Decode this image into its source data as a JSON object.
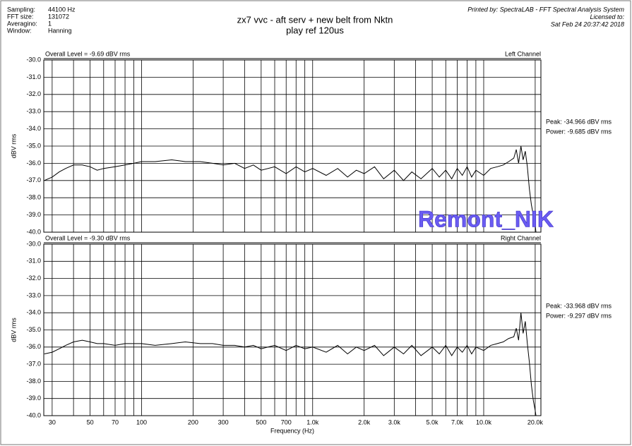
{
  "header": {
    "info_labels": [
      "Sampling:",
      "FFT size:",
      "Averagino:",
      "Window:"
    ],
    "info_values": [
      "44100 Hz",
      "131072",
      "1",
      "Hanning"
    ],
    "title_lines": [
      "zx7 vvc -   aft serv + new belt from Nktn",
      "play ref 120us"
    ],
    "printed_by": [
      "Printed by: SpectraLAB - FFT Spectral Analysis System",
      "Licensed to:",
      "Sat Feb 24 20:37:42 2018"
    ],
    "watermark": "Remont_NIK"
  },
  "chart_data": [
    {
      "type": "line",
      "overall_level": "Overall Level = -9.69 dBV rms",
      "channel": "Left Channel",
      "ylabel": "dBV rms",
      "log_x": true,
      "annotations": [
        "Peak: -34.966 dBV rms",
        "Power: -9.685 dBV rms"
      ],
      "xlim": [
        26.8,
        21600
      ],
      "ylim": [
        -40,
        -30
      ],
      "yticks": [
        {
          "value": -30,
          "label": "-30.0"
        },
        {
          "value": -31,
          "label": "-31.0"
        },
        {
          "value": -32,
          "label": "-32.0"
        },
        {
          "value": -33,
          "label": "-33.0"
        },
        {
          "value": -34,
          "label": "-34.0"
        },
        {
          "value": -35,
          "label": "-35.0"
        },
        {
          "value": -36,
          "label": "-36.0"
        },
        {
          "value": -37,
          "label": "-37.0"
        },
        {
          "value": -38,
          "label": "-38.0"
        },
        {
          "value": -39,
          "label": "-39.0"
        },
        {
          "value": -40,
          "label": "-40.0"
        }
      ],
      "x_grid": [
        30,
        40,
        50,
        60,
        70,
        80,
        90,
        100,
        200,
        300,
        400,
        500,
        600,
        700,
        800,
        900,
        1000,
        2000,
        3000,
        4000,
        5000,
        6000,
        7000,
        8000,
        9000,
        10000,
        20000
      ],
      "x": [
        27,
        30,
        33,
        36,
        40,
        45,
        50,
        55,
        60,
        70,
        80,
        90,
        100,
        120,
        150,
        180,
        220,
        260,
        300,
        350,
        400,
        450,
        500,
        600,
        700,
        800,
        900,
        1000,
        1200,
        1400,
        1600,
        1800,
        2000,
        2300,
        2600,
        3000,
        3400,
        3800,
        4300,
        5000,
        5500,
        6000,
        6500,
        7000,
        7500,
        8000,
        8500,
        9000,
        10000,
        11000,
        12000,
        13000,
        14000,
        15000,
        15500,
        16000,
        16500,
        17000,
        17500,
        18000,
        18500,
        19000,
        19500,
        20000,
        20200
      ],
      "series": [
        {
          "color": "#000000",
          "values": [
            -37.0,
            -36.8,
            -36.5,
            -36.3,
            -36.1,
            -36.1,
            -36.2,
            -36.4,
            -36.3,
            -36.2,
            -36.1,
            -36.0,
            -35.9,
            -35.9,
            -35.8,
            -35.9,
            -35.9,
            -36.0,
            -36.1,
            -36.0,
            -36.3,
            -36.1,
            -36.4,
            -36.2,
            -36.6,
            -36.2,
            -36.5,
            -36.3,
            -36.7,
            -36.3,
            -36.8,
            -36.4,
            -36.6,
            -36.2,
            -36.9,
            -36.4,
            -37.0,
            -36.5,
            -36.9,
            -36.3,
            -36.8,
            -36.4,
            -36.9,
            -36.3,
            -36.7,
            -36.2,
            -36.8,
            -36.4,
            -36.7,
            -36.3,
            -36.2,
            -36.1,
            -35.9,
            -35.7,
            -35.2,
            -36.0,
            -35.0,
            -35.8,
            -35.3,
            -36.2,
            -37.5,
            -38.4,
            -39.0,
            -39.6,
            -40.0
          ]
        }
      ]
    },
    {
      "type": "line",
      "overall_level": "Overall Level = -9.30 dBV rms",
      "channel": "Right Channel",
      "ylabel": "dBV rms",
      "xlabel": "Frequency (Hz)",
      "log_x": true,
      "annotations": [
        "Peak: -33.968 dBV rms",
        "Power: -9.297 dBV rms"
      ],
      "xlim": [
        26.8,
        21600
      ],
      "ylim": [
        -40,
        -30
      ],
      "yticks": [
        {
          "value": -30,
          "label": "-30.0"
        },
        {
          "value": -31,
          "label": "-31.0"
        },
        {
          "value": -32,
          "label": "-32.0"
        },
        {
          "value": -33,
          "label": "-33.0"
        },
        {
          "value": -34,
          "label": "-34.0"
        },
        {
          "value": -35,
          "label": "-35.0"
        },
        {
          "value": -36,
          "label": "-36.0"
        },
        {
          "value": -37,
          "label": "-37.0"
        },
        {
          "value": -38,
          "label": "-38.0"
        },
        {
          "value": -39,
          "label": "-39.0"
        },
        {
          "value": -40,
          "label": "-40.0"
        }
      ],
      "x_grid": [
        30,
        40,
        50,
        60,
        70,
        80,
        90,
        100,
        200,
        300,
        400,
        500,
        600,
        700,
        800,
        900,
        1000,
        2000,
        3000,
        4000,
        5000,
        6000,
        7000,
        8000,
        9000,
        10000,
        20000
      ],
      "xticks": [
        30,
        50,
        70,
        100,
        200,
        300,
        500,
        700,
        {
          "value": 1000,
          "label": "1.0k"
        },
        {
          "value": 2000,
          "label": "2.0k"
        },
        {
          "value": 3000,
          "label": "3.0k"
        },
        {
          "value": 5000,
          "label": "5.0k"
        },
        {
          "value": 7000,
          "label": "7.0k"
        },
        {
          "value": 10000,
          "label": "10.0k"
        },
        {
          "value": 20000,
          "label": "20.0k"
        }
      ],
      "x": [
        27,
        30,
        33,
        36,
        40,
        45,
        50,
        55,
        60,
        70,
        80,
        90,
        100,
        120,
        150,
        180,
        220,
        260,
        300,
        350,
        400,
        450,
        500,
        600,
        700,
        800,
        900,
        1000,
        1200,
        1400,
        1600,
        1800,
        2000,
        2300,
        2600,
        3000,
        3400,
        3800,
        4300,
        5000,
        5500,
        6000,
        6500,
        7000,
        7500,
        8000,
        8500,
        9000,
        10000,
        11000,
        12000,
        13000,
        14000,
        15000,
        15500,
        16000,
        16500,
        17000,
        17500,
        18000,
        18500,
        19000,
        19500,
        20000,
        20200
      ],
      "series": [
        {
          "color": "#000000",
          "values": [
            -36.4,
            -36.3,
            -36.1,
            -35.9,
            -35.7,
            -35.6,
            -35.7,
            -35.8,
            -35.8,
            -35.9,
            -35.8,
            -35.8,
            -35.8,
            -35.9,
            -35.8,
            -35.7,
            -35.8,
            -35.8,
            -35.9,
            -35.9,
            -36.0,
            -35.9,
            -36.1,
            -35.9,
            -36.2,
            -35.9,
            -36.1,
            -36.0,
            -36.3,
            -35.9,
            -36.4,
            -36.0,
            -36.2,
            -35.9,
            -36.5,
            -36.0,
            -36.4,
            -35.9,
            -36.5,
            -36.0,
            -36.4,
            -35.9,
            -36.5,
            -36.0,
            -36.3,
            -35.9,
            -36.4,
            -36.0,
            -36.2,
            -35.9,
            -35.8,
            -35.7,
            -35.5,
            -35.4,
            -34.9,
            -35.6,
            -34.0,
            -35.2,
            -34.5,
            -35.8,
            -36.9,
            -38.2,
            -39.1,
            -39.7,
            -40.0
          ]
        }
      ]
    }
  ]
}
